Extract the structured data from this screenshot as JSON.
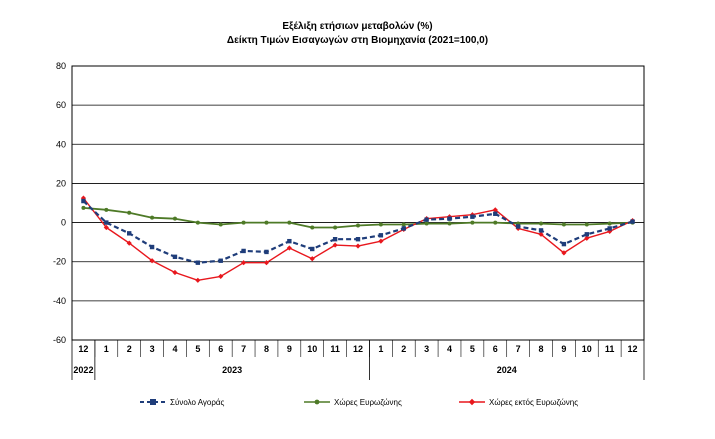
{
  "title_line1": "Εξέλιξη ετήσιων μεταβολών (%)",
  "title_line2": "Δείκτη Τιμών Εισαγωγών στη Βιομηχανία (2021=100,0)",
  "chart_data": {
    "type": "line",
    "categories": [
      "12",
      "1",
      "2",
      "3",
      "4",
      "5",
      "6",
      "7",
      "8",
      "9",
      "10",
      "11",
      "12",
      "1",
      "2",
      "3",
      "4",
      "5",
      "6",
      "7",
      "8",
      "9",
      "10",
      "11",
      "12"
    ],
    "year_labels": [
      {
        "label": "2022",
        "from": 0,
        "to": 0
      },
      {
        "label": "2023",
        "from": 1,
        "to": 12
      },
      {
        "label": "2024",
        "from": 13,
        "to": 24
      }
    ],
    "ylim": [
      -60,
      80
    ],
    "yticks": [
      -60,
      -40,
      -20,
      0,
      20,
      40,
      60,
      80
    ],
    "grid": true,
    "legend_position": "bottom",
    "series": [
      {
        "name": "Σύνολο Αγοράς",
        "color": "#1f3d7a",
        "style": "dashed",
        "marker": "square",
        "values": [
          11,
          0,
          -5.5,
          -12.5,
          -17.5,
          -20.5,
          -19.5,
          -14.5,
          -15,
          -9.5,
          -13.5,
          -8.5,
          -8.5,
          -6.5,
          -3,
          1.5,
          2,
          3,
          4.5,
          -2,
          -4,
          -11,
          -6,
          -3,
          0.5
        ]
      },
      {
        "name": "Χώρες Ευρωζώνης",
        "color": "#4e7a27",
        "style": "solid",
        "marker": "circle",
        "values": [
          7.5,
          6.5,
          5,
          2.5,
          2,
          0,
          -1,
          0,
          0,
          0,
          -2.5,
          -2.5,
          -1.5,
          -1,
          -1,
          -0.5,
          -0.5,
          0,
          0,
          -0.5,
          -0.5,
          -1,
          -1,
          -0.5,
          0
        ]
      },
      {
        "name": "Χώρες εκτός Ευρωζώνης",
        "color": "#e8171d",
        "style": "solid",
        "marker": "diamond",
        "values": [
          12.5,
          -2.5,
          -10.5,
          -19.5,
          -25.5,
          -29.5,
          -27.5,
          -20.5,
          -20.5,
          -13,
          -18.5,
          -11.5,
          -12,
          -9.5,
          -3.5,
          2,
          3,
          4,
          6.5,
          -3,
          -6,
          -15.5,
          -8,
          -4.5,
          1
        ]
      }
    ]
  }
}
